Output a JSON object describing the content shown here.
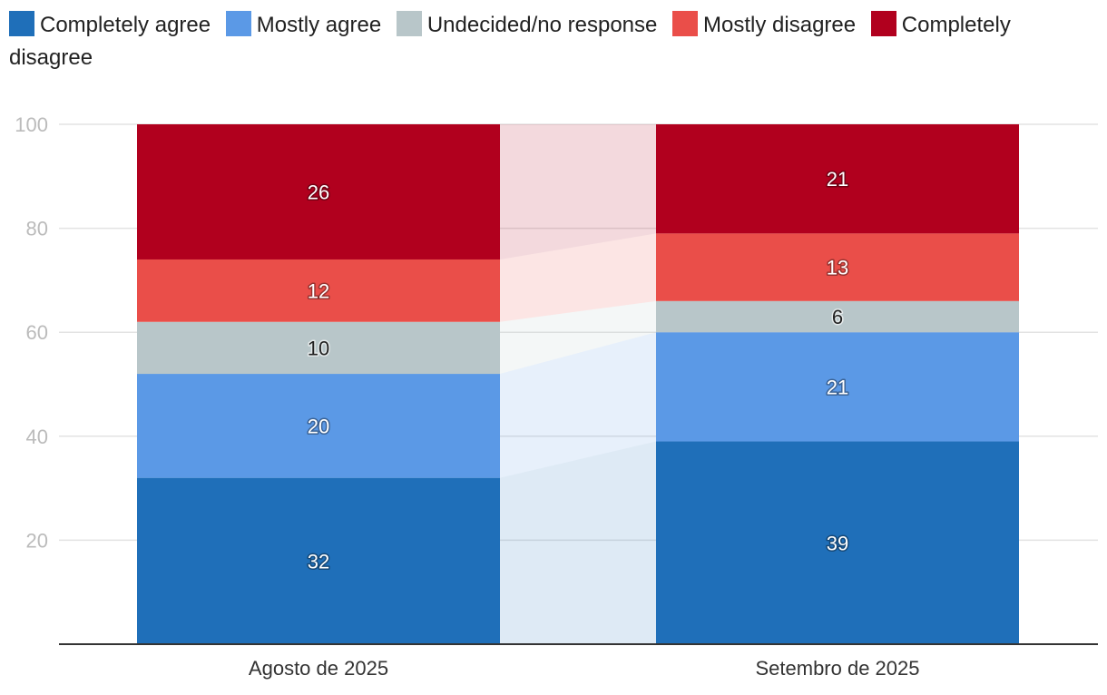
{
  "chart_data": {
    "type": "bar",
    "stacked": true,
    "categories": [
      "Agosto de 2025",
      "Setembro de 2025"
    ],
    "series": [
      {
        "name": "Completely agree",
        "color": "#1f6fb9",
        "values": [
          32,
          39
        ]
      },
      {
        "name": "Mostly agree",
        "color": "#5b99e6",
        "values": [
          20,
          21
        ]
      },
      {
        "name": "Undecided/no response",
        "color": "#b8c6c9",
        "values": [
          10,
          6
        ]
      },
      {
        "name": "Mostly disagree",
        "color": "#ea4e49",
        "values": [
          12,
          13
        ]
      },
      {
        "name": "Completely disagree",
        "color": "#b1001e",
        "values": [
          26,
          21
        ]
      }
    ],
    "ylim": [
      0,
      100
    ],
    "yticks": [
      20,
      40,
      60,
      80,
      100
    ],
    "grid": true,
    "legend_position": "top-left",
    "title": "",
    "xlabel": "",
    "ylabel": ""
  }
}
